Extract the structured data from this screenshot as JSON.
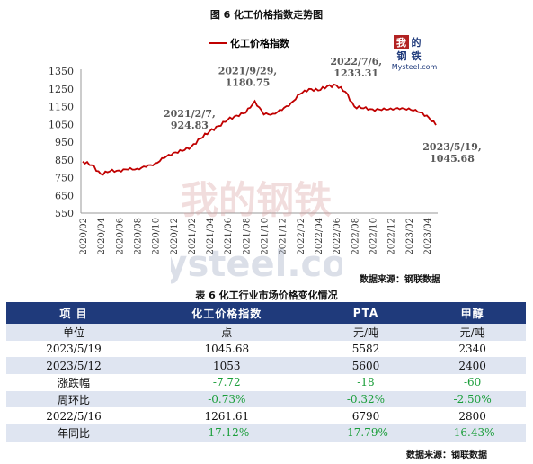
{
  "figure": {
    "title": "图 6 化工价格指数走势图",
    "legend": "化工价格指数",
    "source": "数据来源：钢联数据",
    "logo": {
      "cn_top": "我的",
      "cn_bottom": "钢铁",
      "en": "Mysteel.com"
    },
    "watermark": {
      "cn": "我的钢铁",
      "en": "Mysteel.com"
    }
  },
  "chart_data": {
    "type": "line",
    "series": [
      {
        "name": "化工价格指数",
        "color": "#c00000",
        "x": [
          "2020-02",
          "2020-03",
          "2020-04",
          "2020-05",
          "2020-06",
          "2020-07",
          "2020-08",
          "2020-09",
          "2020-10",
          "2020-11",
          "2020-12",
          "2021-01",
          "2021-02",
          "2021-03",
          "2021-04",
          "2021-05",
          "2021-06",
          "2021-07",
          "2021-08",
          "2021-09",
          "2021-10",
          "2021-11",
          "2021-12",
          "2022-01",
          "2022-02",
          "2022-03",
          "2022-04",
          "2022-05",
          "2022-06",
          "2022-07",
          "2022-08",
          "2022-09",
          "2022-10",
          "2022-11",
          "2022-12",
          "2023-01",
          "2023-02",
          "2023-03",
          "2023-04",
          "2023-05"
        ],
        "values": [
          840,
          820,
          770,
          785,
          790,
          795,
          800,
          810,
          830,
          860,
          890,
          900,
          924.83,
          970,
          1010,
          1040,
          1075,
          1100,
          1115,
          1180.75,
          1105,
          1110,
          1130,
          1170,
          1220,
          1250,
          1240,
          1265,
          1270,
          1233.31,
          1150,
          1140,
          1135,
          1130,
          1140,
          1135,
          1140,
          1120,
          1100,
          1045.68
        ]
      }
    ],
    "x_tick_labels": [
      "2020/02",
      "2020/04",
      "2020/06",
      "2020/08",
      "2020/10",
      "2020/12",
      "2021/02",
      "2021/04",
      "2021/06",
      "2021/08",
      "2021/10",
      "2021/12",
      "2022/02",
      "2022/04",
      "2022/06",
      "2022/08",
      "2022/10",
      "2022/12",
      "2023/02",
      "2023/04"
    ],
    "y_tick_labels": [
      "550",
      "650",
      "750",
      "850",
      "950",
      "1050",
      "1150",
      "1250",
      "1350"
    ],
    "ylim": [
      550,
      1350
    ],
    "legend_position": "top-left",
    "grid": false,
    "annotations": [
      {
        "line1": "2021/2/7,",
        "line2": "924.83",
        "x": "2021-02",
        "y": 924.83
      },
      {
        "line1": "2021/9/29,",
        "line2": "1180.75",
        "x": "2021-09",
        "y": 1180.75
      },
      {
        "line1": "2022/7/6,",
        "line2": "1233.31",
        "x": "2022-07",
        "y": 1233.31
      },
      {
        "line1": "2023/5/19,",
        "line2": "1045.68",
        "x": "2023-05",
        "y": 1045.68
      }
    ]
  },
  "table": {
    "title": "表 6 化工行业市场价格变化情况",
    "headers": [
      "项 目",
      "化工价格指数",
      "PTA",
      "甲醇"
    ],
    "rows": [
      [
        "单位",
        "点",
        "元/吨",
        "元/吨"
      ],
      [
        "2023/5/19",
        "1045.68",
        "5582",
        "2340"
      ],
      [
        "2023/5/12",
        "1053",
        "5600",
        "2400"
      ],
      [
        "涨跌幅",
        "-7.72",
        "-18",
        "-60"
      ],
      [
        "周环比",
        "-0.73%",
        "-0.32%",
        "-2.50%"
      ],
      [
        "2022/5/16",
        "1261.61",
        "6790",
        "2800"
      ],
      [
        "年同比",
        "-17.12%",
        "-17.79%",
        "-16.43%"
      ]
    ],
    "source": "数据来源：钢联数据"
  }
}
